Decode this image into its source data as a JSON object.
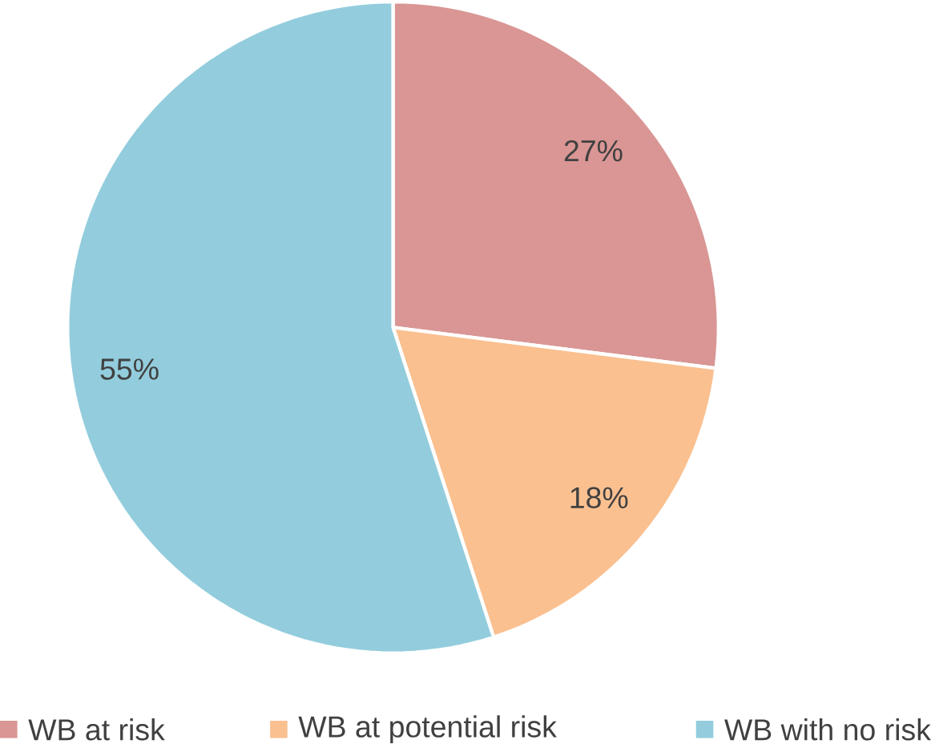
{
  "chart_data": {
    "type": "pie",
    "categories": [
      "WB at risk",
      "WB at potential risk",
      "WB with no risk"
    ],
    "values": [
      27,
      18,
      55
    ],
    "value_labels": [
      "27%",
      "18%",
      "55%"
    ],
    "colors": [
      "#d99694",
      "#fac090",
      "#93cddd"
    ],
    "legend": "bottom"
  }
}
